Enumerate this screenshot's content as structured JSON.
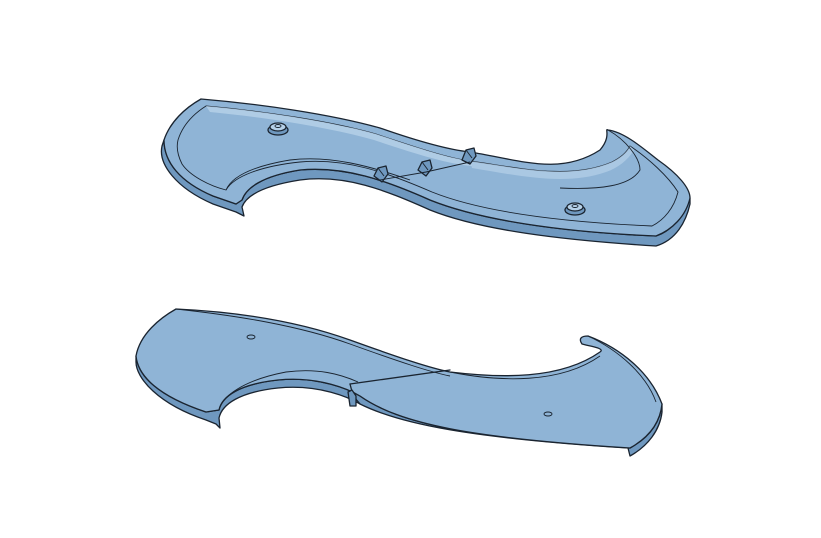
{
  "scene": {
    "background_color": "#ffffff",
    "part_color": "#8fb4d6",
    "part_shade_color": "#6f98bf",
    "part_highlight_color": "#b5d0e8",
    "edge_color": "#1a2430"
  },
  "parts": [
    {
      "name": "s-curve-tray-with-raised-rim-and-clip-tabs"
    },
    {
      "name": "s-curve-flat-plate-split-with-joint"
    }
  ]
}
